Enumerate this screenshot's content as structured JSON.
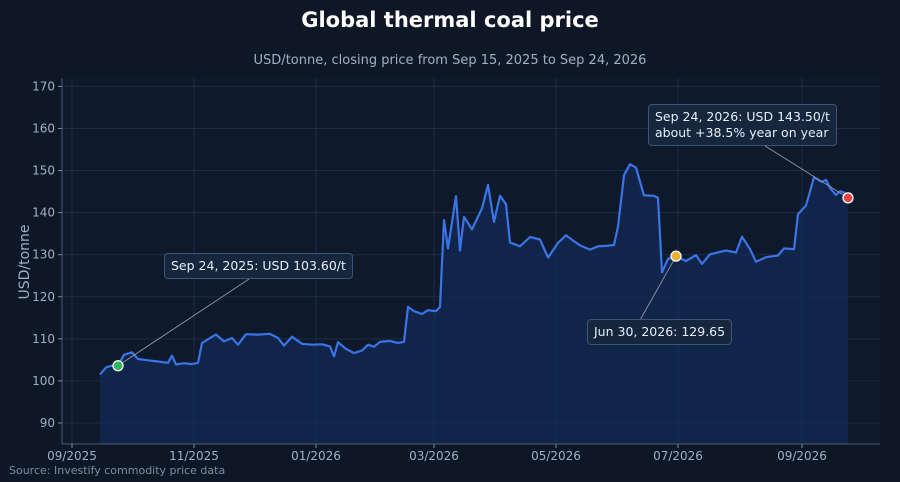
{
  "chart_data": {
    "type": "line",
    "title": "Global thermal coal price",
    "subtitle": "USD/tonne, closing price from Sep 15, 2025 to Sep 24, 2026",
    "ylabel": "USD/tonne",
    "xlabel": "",
    "x_ticks": [
      "09/2025",
      "11/2025",
      "01/2026",
      "03/2026",
      "05/2026",
      "07/2026",
      "09/2026"
    ],
    "y_ticks": [
      90,
      100,
      110,
      120,
      130,
      140,
      150,
      160,
      170
    ],
    "ylim": [
      85,
      172
    ],
    "xlim": [
      "2025-08-27",
      "2026-10-10"
    ],
    "grid": true,
    "series": [
      {
        "color": "#3b74e6",
        "points": [
          [
            "2025-09-15",
            101.5
          ],
          [
            "2025-09-18",
            103.2
          ],
          [
            "2025-09-22",
            103.8
          ],
          [
            "2025-09-24",
            103.6
          ],
          [
            "2025-09-27",
            106.2
          ],
          [
            "2025-10-01",
            106.8
          ],
          [
            "2025-10-04",
            105.2
          ],
          [
            "2025-10-09",
            104.9
          ],
          [
            "2025-10-14",
            104.6
          ],
          [
            "2025-10-19",
            104.3
          ],
          [
            "2025-10-21",
            106.0
          ],
          [
            "2025-10-23",
            103.9
          ],
          [
            "2025-10-27",
            104.2
          ],
          [
            "2025-10-31",
            104.0
          ],
          [
            "2025-11-03",
            104.3
          ],
          [
            "2025-11-05",
            109.0
          ],
          [
            "2025-11-09",
            110.2
          ],
          [
            "2025-11-12",
            111.0
          ],
          [
            "2025-11-16",
            109.4
          ],
          [
            "2025-11-20",
            110.2
          ],
          [
            "2025-11-23",
            108.6
          ],
          [
            "2025-11-27",
            111.1
          ],
          [
            "2025-12-03",
            111.0
          ],
          [
            "2025-12-09",
            111.2
          ],
          [
            "2025-12-13",
            110.2
          ],
          [
            "2025-12-16",
            108.4
          ],
          [
            "2025-12-20",
            110.5
          ],
          [
            "2025-12-25",
            108.8
          ],
          [
            "2025-12-30",
            108.6
          ],
          [
            "2026-01-04",
            108.7
          ],
          [
            "2026-01-08",
            108.2
          ],
          [
            "2026-01-10",
            105.8
          ],
          [
            "2026-01-12",
            109.2
          ],
          [
            "2026-01-16",
            107.6
          ],
          [
            "2026-01-20",
            106.6
          ],
          [
            "2026-01-24",
            107.2
          ],
          [
            "2026-01-27",
            108.6
          ],
          [
            "2026-01-30",
            108.1
          ],
          [
            "2026-02-02",
            109.3
          ],
          [
            "2026-02-07",
            109.5
          ],
          [
            "2026-02-11",
            109.0
          ],
          [
            "2026-02-14",
            109.3
          ],
          [
            "2026-02-16",
            117.6
          ],
          [
            "2026-02-19",
            116.6
          ],
          [
            "2026-02-23",
            115.9
          ],
          [
            "2026-02-26",
            116.8
          ],
          [
            "2026-03-02",
            116.6
          ],
          [
            "2026-03-04",
            117.6
          ],
          [
            "2026-03-05",
            128.0
          ],
          [
            "2026-03-06",
            138.2
          ],
          [
            "2026-03-08",
            131.5
          ],
          [
            "2026-03-12",
            143.9
          ],
          [
            "2026-03-14",
            131.0
          ],
          [
            "2026-03-16",
            139.0
          ],
          [
            "2026-03-20",
            136.0
          ],
          [
            "2026-03-25",
            141.0
          ],
          [
            "2026-03-28",
            146.6
          ],
          [
            "2026-03-31",
            137.8
          ],
          [
            "2026-04-03",
            144.0
          ],
          [
            "2026-04-06",
            142.0
          ],
          [
            "2026-04-08",
            132.9
          ],
          [
            "2026-04-13",
            132.0
          ],
          [
            "2026-04-18",
            134.2
          ],
          [
            "2026-04-23",
            133.6
          ],
          [
            "2026-04-27",
            129.3
          ],
          [
            "2026-05-02",
            132.8
          ],
          [
            "2026-05-06",
            134.6
          ],
          [
            "2026-05-10",
            133.2
          ],
          [
            "2026-05-13",
            132.2
          ],
          [
            "2026-05-18",
            131.2
          ],
          [
            "2026-05-22",
            132.0
          ],
          [
            "2026-05-26",
            132.1
          ],
          [
            "2026-05-30",
            132.3
          ],
          [
            "2026-06-01",
            136.7
          ],
          [
            "2026-06-04",
            148.9
          ],
          [
            "2026-06-07",
            151.5
          ],
          [
            "2026-06-10",
            150.7
          ],
          [
            "2026-06-14",
            144.1
          ],
          [
            "2026-06-19",
            144.0
          ],
          [
            "2026-06-21",
            143.5
          ],
          [
            "2026-06-23",
            125.8
          ],
          [
            "2026-06-26",
            129.0
          ],
          [
            "2026-06-30",
            129.65
          ],
          [
            "2026-07-05",
            128.5
          ],
          [
            "2026-07-10",
            129.9
          ],
          [
            "2026-07-13",
            127.8
          ],
          [
            "2026-07-17",
            130.1
          ],
          [
            "2026-07-25",
            131.0
          ],
          [
            "2026-07-30",
            130.5
          ],
          [
            "2026-08-02",
            134.3
          ],
          [
            "2026-08-06",
            131.3
          ],
          [
            "2026-08-09",
            128.3
          ],
          [
            "2026-08-14",
            129.4
          ],
          [
            "2026-08-20",
            129.8
          ],
          [
            "2026-08-23",
            131.5
          ],
          [
            "2026-08-28",
            131.3
          ],
          [
            "2026-08-30",
            139.6
          ],
          [
            "2026-09-03",
            141.7
          ],
          [
            "2026-09-07",
            148.4
          ],
          [
            "2026-09-11",
            147.3
          ],
          [
            "2026-09-13",
            147.8
          ],
          [
            "2026-09-15",
            145.9
          ],
          [
            "2026-09-18",
            144.2
          ],
          [
            "2026-09-20",
            145.1
          ],
          [
            "2026-09-22",
            144.8
          ],
          [
            "2026-09-24",
            143.5
          ]
        ]
      }
    ],
    "annotations": [
      {
        "id": "start",
        "x": "2025-09-24",
        "y": 103.6,
        "text": "Sep 24, 2025: USD 103.60/t",
        "marker_color": "#2fb85a"
      },
      {
        "id": "mid",
        "x": "2026-06-30",
        "y": 129.65,
        "text": "Jun 30, 2026: 129.65",
        "marker_color": "#e9b230"
      },
      {
        "id": "end",
        "x": "2026-09-24",
        "y": 143.5,
        "text": "Sep 24, 2026: USD 143.50/t",
        "text2": "about +38.5% year on year",
        "marker_color": "#e04848"
      }
    ],
    "source": "Source: Investify commodity price data"
  }
}
